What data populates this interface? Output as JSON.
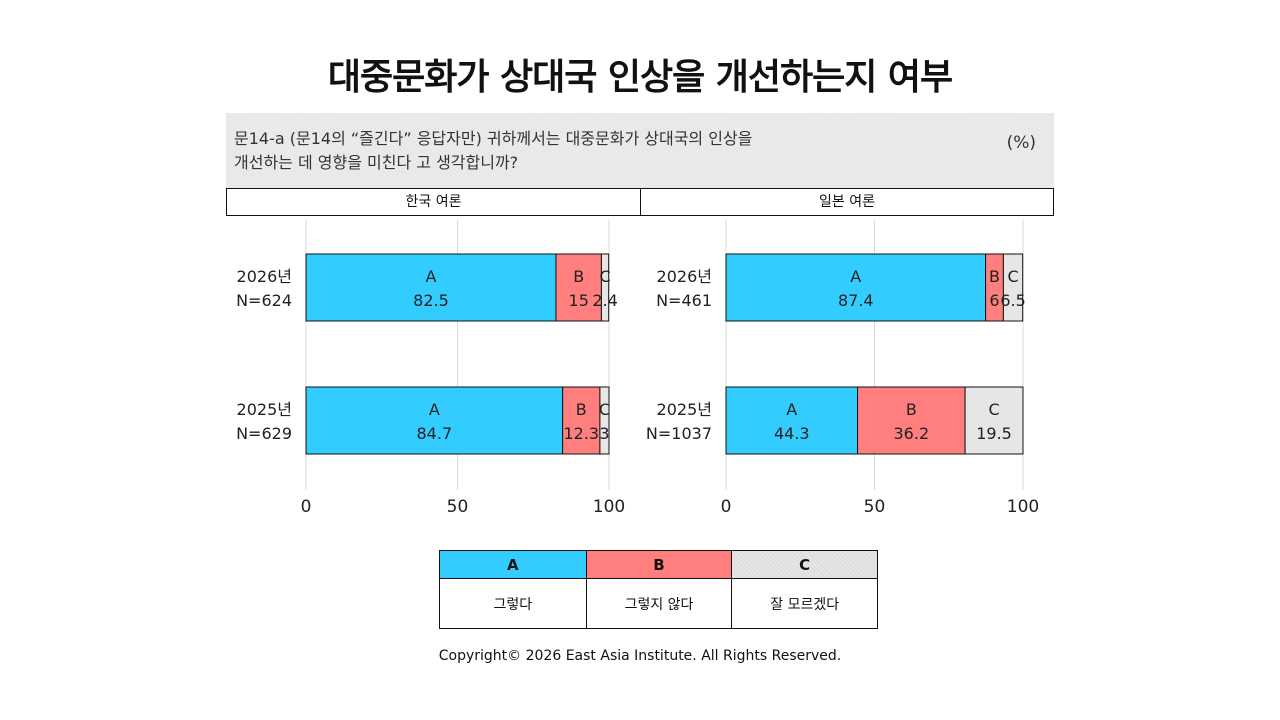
{
  "title": "대중문화가 상대국 인상을 개선하는지 여부",
  "question": "문14-a (문14의 “즐긴다” 응답자만) 귀하께서는 대중문화가 상대국의 인상을\n개선하는 데 영향을 미친다 고 생각합니까?",
  "unit": "(%)",
  "colors": {
    "A": "#33ccff",
    "B": "#ff7f7f",
    "C": "#e6e6e6"
  },
  "legend": [
    {
      "key": "A",
      "label": "그렇다"
    },
    {
      "key": "B",
      "label": "그렇지 않다"
    },
    {
      "key": "C",
      "label": "잘 모르겠다"
    }
  ],
  "footer": "Copyright© 2026 East Asia Institute. All Rights Reserved.",
  "chart_data": [
    {
      "type": "bar",
      "orientation": "horizontal",
      "stacked": true,
      "title": "한국 여론",
      "categories": [
        "2026년\nN=624",
        "2025년\nN=629"
      ],
      "series": [
        {
          "name": "A",
          "values": [
            82.5,
            84.7
          ]
        },
        {
          "name": "B",
          "values": [
            15.0,
            12.3
          ]
        },
        {
          "name": "C",
          "values": [
            2.4,
            3.0
          ]
        }
      ],
      "xlim": [
        0,
        100
      ],
      "xticks": [
        0,
        50,
        100
      ],
      "grid": true
    },
    {
      "type": "bar",
      "orientation": "horizontal",
      "stacked": true,
      "title": "일본 여론",
      "categories": [
        "2026년\nN=461",
        "2025년\nN=1037"
      ],
      "series": [
        {
          "name": "A",
          "values": [
            87.4,
            44.3
          ]
        },
        {
          "name": "B",
          "values": [
            6,
            36.2
          ]
        },
        {
          "name": "C",
          "values": [
            6.5,
            19.5
          ]
        }
      ],
      "xlim": [
        0,
        100
      ],
      "xticks": [
        0,
        50,
        100
      ],
      "grid": true
    }
  ]
}
